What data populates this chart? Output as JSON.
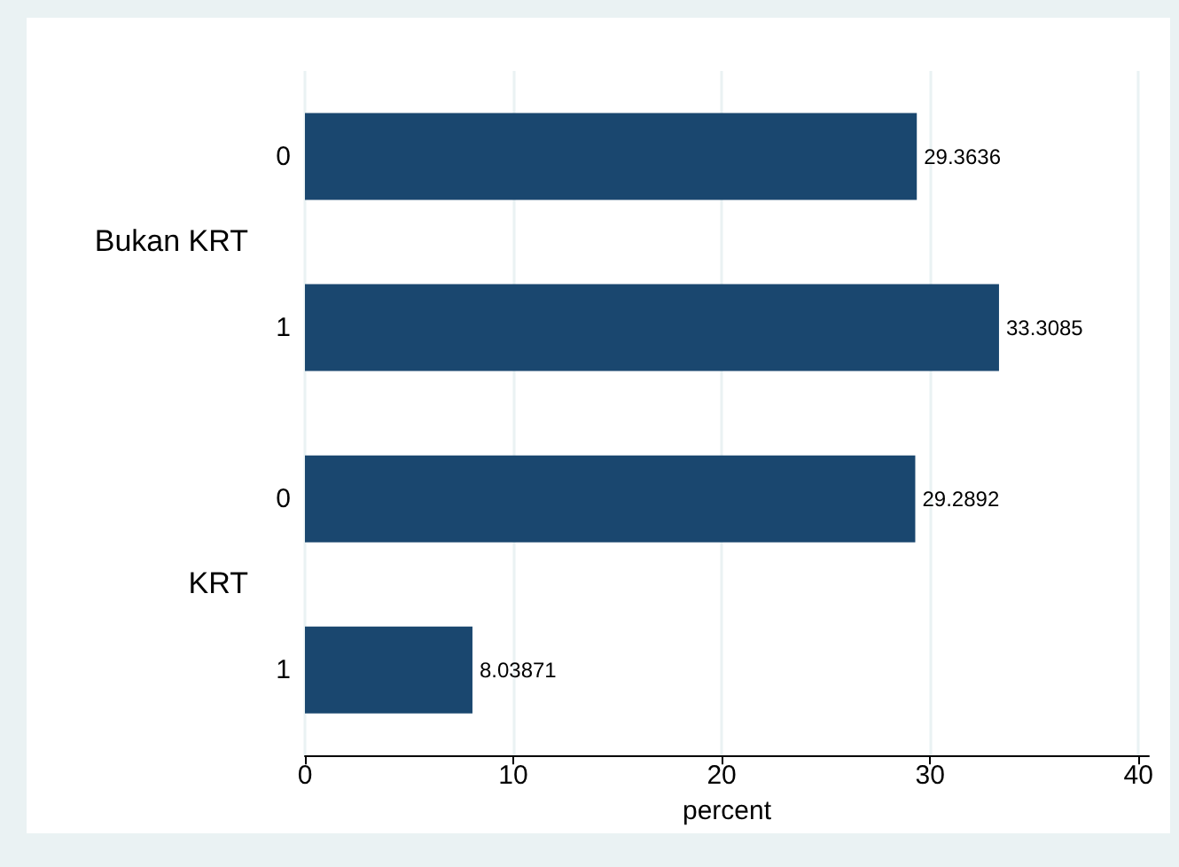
{
  "chart_data": {
    "type": "bar",
    "orientation": "horizontal",
    "xlabel": "percent",
    "categories": [
      "0",
      "1",
      "0",
      "1"
    ],
    "annotations": [
      "Bukan KRT",
      "KRT"
    ],
    "series": [
      {
        "color": "#1a476f",
        "values": [
          29.3636,
          33.3085,
          29.2892,
          8.03871
        ]
      }
    ],
    "xlim": [
      0,
      40.5
    ],
    "xticks": [
      0,
      10,
      20,
      30,
      40
    ],
    "grid": "x",
    "data_labels": true
  }
}
